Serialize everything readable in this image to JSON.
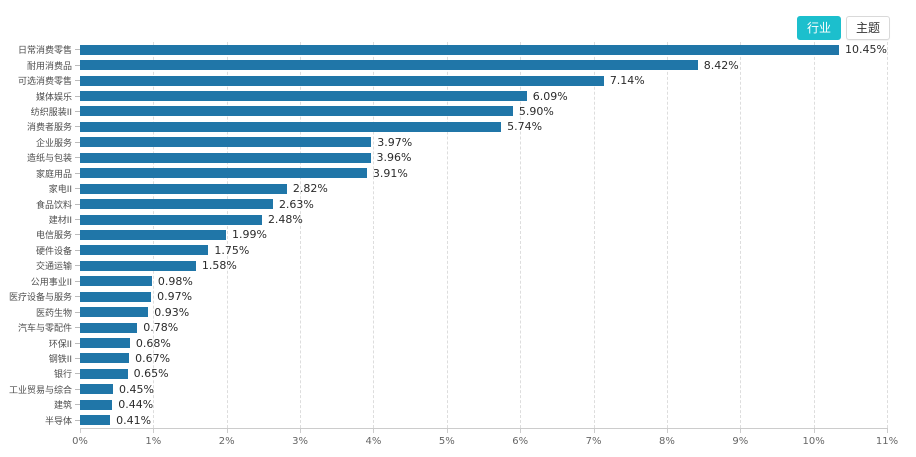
{
  "toolbar": {
    "industry_label": "行业",
    "topic_label": "主题"
  },
  "colors": {
    "bar": "#2076a8",
    "accent": "#1cbfcd",
    "gridline": "#dddddd",
    "axis": "#cccccc"
  },
  "chart_data": {
    "type": "bar",
    "orientation": "horizontal",
    "title": "",
    "xlabel": "",
    "ylabel": "",
    "xlim": [
      0,
      11
    ],
    "grid": "dashed-vertical",
    "legend": "none",
    "categories": [
      "日常消费零售",
      "耐用消费品",
      "可选消费零售",
      "媒体娱乐",
      "纺织服装II",
      "消费者服务",
      "企业服务",
      "造纸与包装",
      "家庭用品",
      "家电II",
      "食品饮料",
      "建材II",
      "电信服务",
      "硬件设备",
      "交通运输",
      "公用事业II",
      "医疗设备与服务",
      "医药生物",
      "汽车与零配件",
      "环保II",
      "钢铁II",
      "银行",
      "工业贸易与综合",
      "建筑",
      "半导体"
    ],
    "values": [
      10.45,
      8.42,
      7.14,
      6.09,
      5.9,
      5.74,
      3.97,
      3.96,
      3.91,
      2.82,
      2.63,
      2.48,
      1.99,
      1.75,
      1.58,
      0.98,
      0.97,
      0.93,
      0.78,
      0.68,
      0.67,
      0.65,
      0.45,
      0.44,
      0.41
    ],
    "value_labels": [
      "10.45%",
      "8.42%",
      "7.14%",
      "6.09%",
      "5.90%",
      "5.74%",
      "3.97%",
      "3.96%",
      "3.91%",
      "2.82%",
      "2.63%",
      "2.48%",
      "1.99%",
      "1.75%",
      "1.58%",
      "0.98%",
      "0.97%",
      "0.93%",
      "0.78%",
      "0.68%",
      "0.67%",
      "0.65%",
      "0.45%",
      "0.44%",
      "0.41%"
    ],
    "x_ticks": [
      "0%",
      "1%",
      "2%",
      "3%",
      "4%",
      "5%",
      "6%",
      "7%",
      "8%",
      "9%",
      "10%",
      "11%"
    ]
  }
}
